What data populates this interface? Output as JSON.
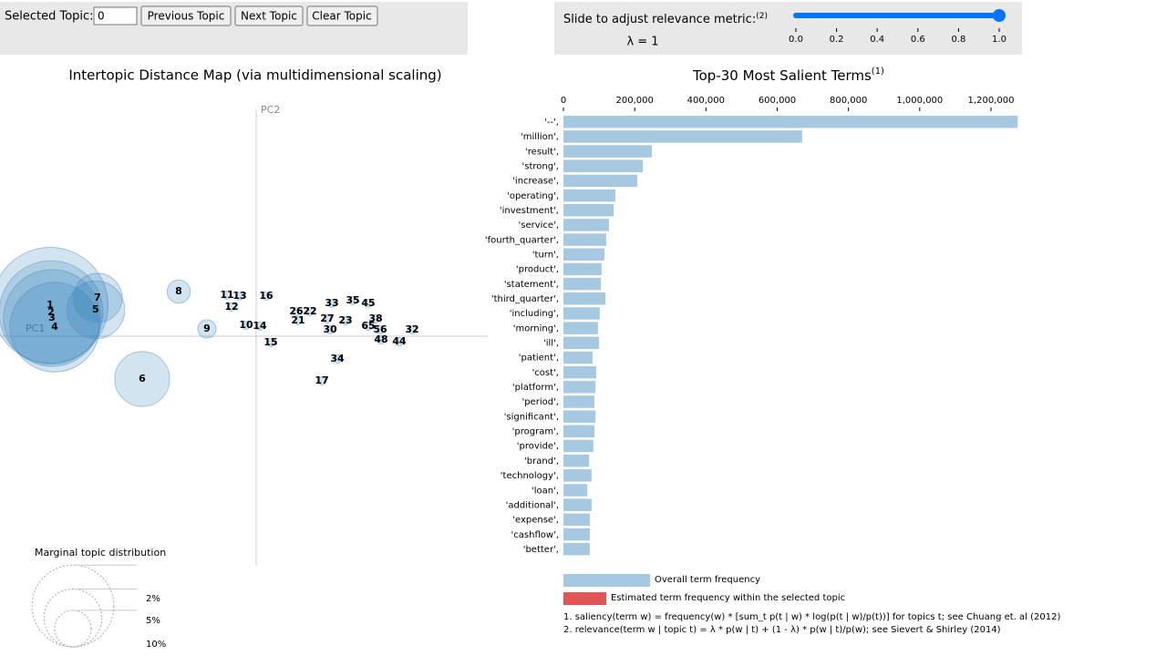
{
  "controls": {
    "selected_label": "Selected Topic:",
    "selected_value": "0",
    "buttons": [
      "Previous Topic",
      "Next Topic",
      "Clear Topic"
    ],
    "slider_label": "Slide to adjust relevance metric:",
    "slider_note": "(2)",
    "lambda_label": "λ = 1",
    "slider_value": 1,
    "slider_ticks": [
      {
        "value": 0,
        "label": "0.0"
      },
      0.2,
      0.4,
      0.6,
      0.8,
      {
        "value": 1,
        "label": "1.0"
      }
    ]
  },
  "chart_data": [
    {
      "type": "scatter",
      "title": "Intertopic Distance Map (via multidimensional scaling)",
      "xlabel": "PC1",
      "ylabel": "PC2",
      "xlim": [
        -2.81,
        2.54
      ],
      "ylim": [
        -2.51,
        2.49
      ],
      "color": "#1f77b4",
      "topics": [
        "1",
        "2",
        "3",
        "4",
        "5",
        "6",
        "7",
        "8",
        "9",
        "10",
        "11",
        "12",
        "13",
        "14",
        "15",
        "16",
        "17",
        "21",
        "22",
        "23",
        "26",
        "27",
        "30",
        "32",
        "33",
        "34",
        "35",
        "38",
        "44",
        "45",
        "48",
        "56",
        "65"
      ],
      "x": [
        -2.26,
        -2.25,
        -2.24,
        -2.21,
        -1.76,
        -1.25,
        -1.74,
        -0.85,
        -0.54,
        -0.11,
        -0.32,
        -0.27,
        -0.18,
        0.04,
        0.16,
        0.11,
        0.72,
        0.46,
        0.59,
        0.98,
        0.44,
        0.78,
        0.81,
        1.71,
        0.83,
        0.89,
        1.06,
        1.31,
        1.57,
        1.23,
        1.37,
        1.36,
        1.23
      ],
      "y": [
        0.34,
        0.26,
        0.2,
        0.1,
        0.29,
        -0.47,
        0.42,
        0.49,
        0.08,
        0.12,
        0.45,
        0.32,
        0.44,
        0.11,
        -0.07,
        0.44,
        -0.49,
        0.17,
        0.27,
        0.17,
        0.27,
        0.19,
        0.07,
        0.07,
        0.36,
        -0.25,
        0.39,
        0.19,
        -0.06,
        0.36,
        -0.04,
        0.07,
        0.11
      ],
      "sizes": [
        20,
        16,
        14,
        12,
        5,
        4.5,
        3.6,
        0.8,
        0.5,
        0.1,
        0.1,
        0.1,
        0.1,
        0.1,
        0.1,
        0.1,
        0.1,
        0.1,
        0.1,
        0.1,
        0.1,
        0.1,
        0.1,
        0.1,
        0.1,
        0.1,
        0.1,
        0.1,
        0.1,
        0.1,
        0.1,
        0.1,
        0.1
      ],
      "size_legend_title": "Marginal topic distribution",
      "size_legend": [
        {
          "value": 2,
          "label": "2%"
        },
        {
          "value": 5,
          "label": "5%"
        },
        {
          "value": 10,
          "label": "10%"
        }
      ]
    },
    {
      "type": "bar",
      "orientation": "horizontal",
      "title": "Top-30 Most Salient Terms",
      "title_note": "(1)",
      "categories": [
        "'--',",
        "'million',",
        "'result',",
        "'strong',",
        "'increase',",
        "'operating',",
        "'investment',",
        "'service',",
        "'fourth_quarter',",
        "'turn',",
        "'product',",
        "'statement',",
        "'third_quarter',",
        "'including',",
        "'morning',",
        "'ill',",
        "'patient',",
        "'cost',",
        "'platform',",
        "'period',",
        "'significant',",
        "'program',",
        "'provide',",
        "'brand',",
        "'technology',",
        "'loan',",
        "'additional',",
        "'expense',",
        "'cashflow',",
        "'better',"
      ],
      "values": [
        1275000,
        670000,
        248000,
        223000,
        207000,
        146000,
        141000,
        128000,
        120000,
        115000,
        107000,
        105000,
        118000,
        102000,
        97000,
        100000,
        82000,
        92000,
        90000,
        87000,
        90000,
        87000,
        84000,
        72000,
        79000,
        67000,
        79000,
        74000,
        74000,
        74000
      ],
      "color": "#a6c8e0",
      "xlim": [
        0,
        1300000
      ],
      "xticks": [
        0,
        {
          "value": 200000,
          "label": "200,000"
        },
        {
          "value": 400000,
          "label": "400,000"
        },
        {
          "value": 600000,
          "label": "600,000"
        },
        {
          "value": 800000,
          "label": "800,000"
        },
        {
          "value": 1000000,
          "label": "1,000,000"
        },
        {
          "value": 1200000,
          "label": "1,200,000"
        }
      ],
      "legend": [
        {
          "name": "Overall term frequency",
          "color": "#a6c8e0"
        },
        {
          "name": "Estimated term frequency within the selected topic",
          "color": "#e05656"
        }
      ],
      "footnotes": [
        "1. saliency(term w) = frequency(w) * [sum_t p(t | w) * log(p(t | w)/p(t))] for topics t; see Chuang et. al (2012)",
        "2. relevance(term w | topic t) = λ * p(w | t) + (1 - λ) * p(w | t)/p(w); see Sievert & Shirley (2014)"
      ]
    }
  ]
}
